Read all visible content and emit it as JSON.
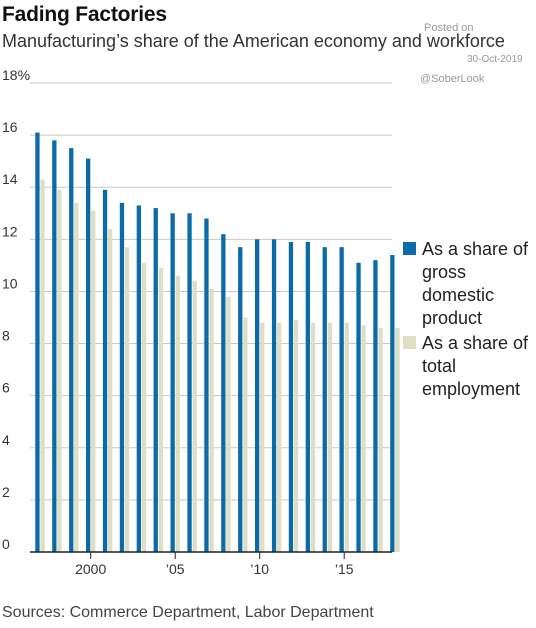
{
  "title": "Fading Factories",
  "subtitle": "Manufacturing’s share of the American economy and workforce",
  "watermark": {
    "posted": "Posted on",
    "date": "30-Oct-2019",
    "handle": "@SoberLook"
  },
  "source": "Sources: Commerce Department, Labor Department",
  "colors": {
    "gdp": "#0B6BA8",
    "employment": "#DEDEC5",
    "grid": "#C8C8C8",
    "axis": "#222222"
  },
  "chart_data": {
    "type": "bar",
    "x": [
      1997,
      1998,
      1999,
      2000,
      2001,
      2002,
      2003,
      2004,
      2005,
      2006,
      2007,
      2008,
      2009,
      2010,
      2011,
      2012,
      2013,
      2014,
      2015,
      2016,
      2017,
      2018
    ],
    "series": [
      {
        "name": "As a share of gross domestic product",
        "values": [
          16.1,
          15.8,
          15.5,
          15.1,
          13.9,
          13.4,
          13.3,
          13.2,
          13.0,
          13.0,
          12.8,
          12.2,
          11.7,
          12.0,
          12.0,
          11.9,
          11.9,
          11.7,
          11.7,
          11.1,
          11.2,
          11.4
        ]
      },
      {
        "name": "As a share of total employment",
        "values": [
          14.3,
          13.9,
          13.4,
          13.1,
          12.4,
          11.7,
          11.1,
          10.9,
          10.6,
          10.4,
          10.1,
          9.8,
          9.0,
          8.8,
          8.8,
          8.9,
          8.8,
          8.8,
          8.8,
          8.7,
          8.6,
          8.6
        ]
      }
    ],
    "y_ticks": [
      "18%",
      "16",
      "14",
      "12",
      "10",
      "8",
      "6",
      "4",
      "2",
      "0"
    ],
    "x_ticks": [
      {
        "year": 2000,
        "label": "2000"
      },
      {
        "year": 2005,
        "label": "’05"
      },
      {
        "year": 2010,
        "label": "’10"
      },
      {
        "year": 2015,
        "label": "’15"
      }
    ],
    "ylim": [
      0,
      18
    ],
    "grid": true,
    "legend_position": "right"
  }
}
